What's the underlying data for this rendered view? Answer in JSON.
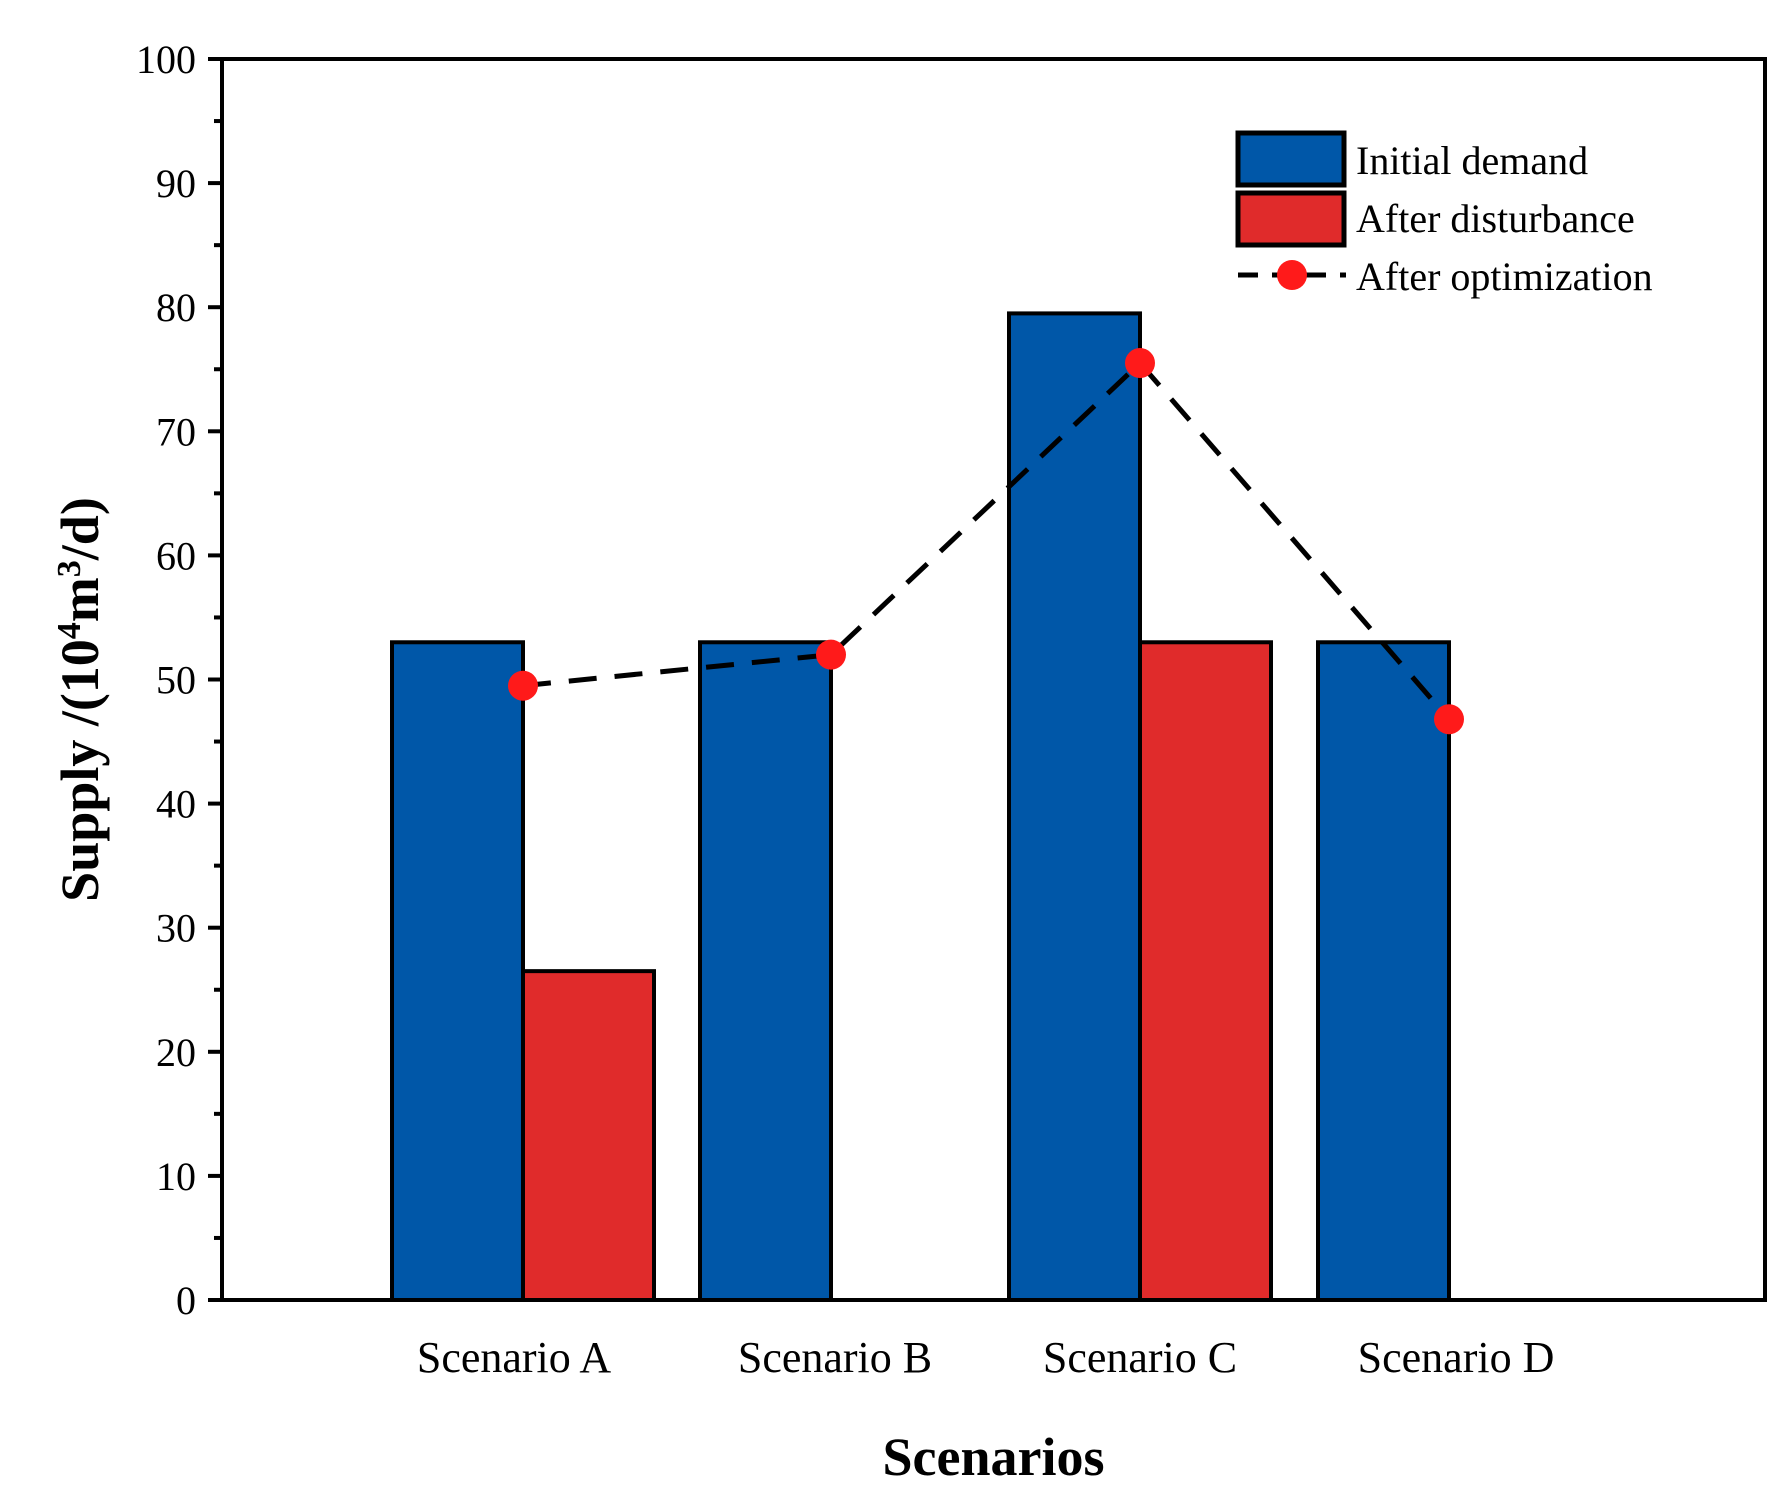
{
  "chart_data": {
    "type": "bar",
    "categories": [
      "Scenario A",
      "Scenario B",
      "Scenario C",
      "Scenario D"
    ],
    "series": [
      {
        "name": "Initial demand",
        "kind": "bar",
        "color": "#0057A8",
        "values": [
          53,
          53,
          79.5,
          53
        ]
      },
      {
        "name": "After disturbance",
        "kind": "bar",
        "color": "#E02B2B",
        "values": [
          26.5,
          null,
          53,
          null
        ]
      },
      {
        "name": "After optimization",
        "kind": "line-dashed-markers",
        "color": "#FF1A1A",
        "line_color": "#000000",
        "values": [
          49.5,
          52,
          75.5,
          46.8
        ]
      }
    ],
    "xlabel": "Scenarios",
    "ylabel": "Supply /(10",
    "ylabel_sup1": "4",
    "ylabel_mid": "m",
    "ylabel_sup2": "3",
    "ylabel_end": "/d)",
    "ylim": [
      0,
      100
    ],
    "yticks": [
      "0",
      "10",
      "20",
      "30",
      "40",
      "50",
      "60",
      "70",
      "80",
      "90",
      "100"
    ],
    "ytick_values": [
      0,
      10,
      20,
      30,
      40,
      50,
      60,
      70,
      80,
      90,
      100
    ],
    "legend_position": "top-right",
    "grid": false
  }
}
